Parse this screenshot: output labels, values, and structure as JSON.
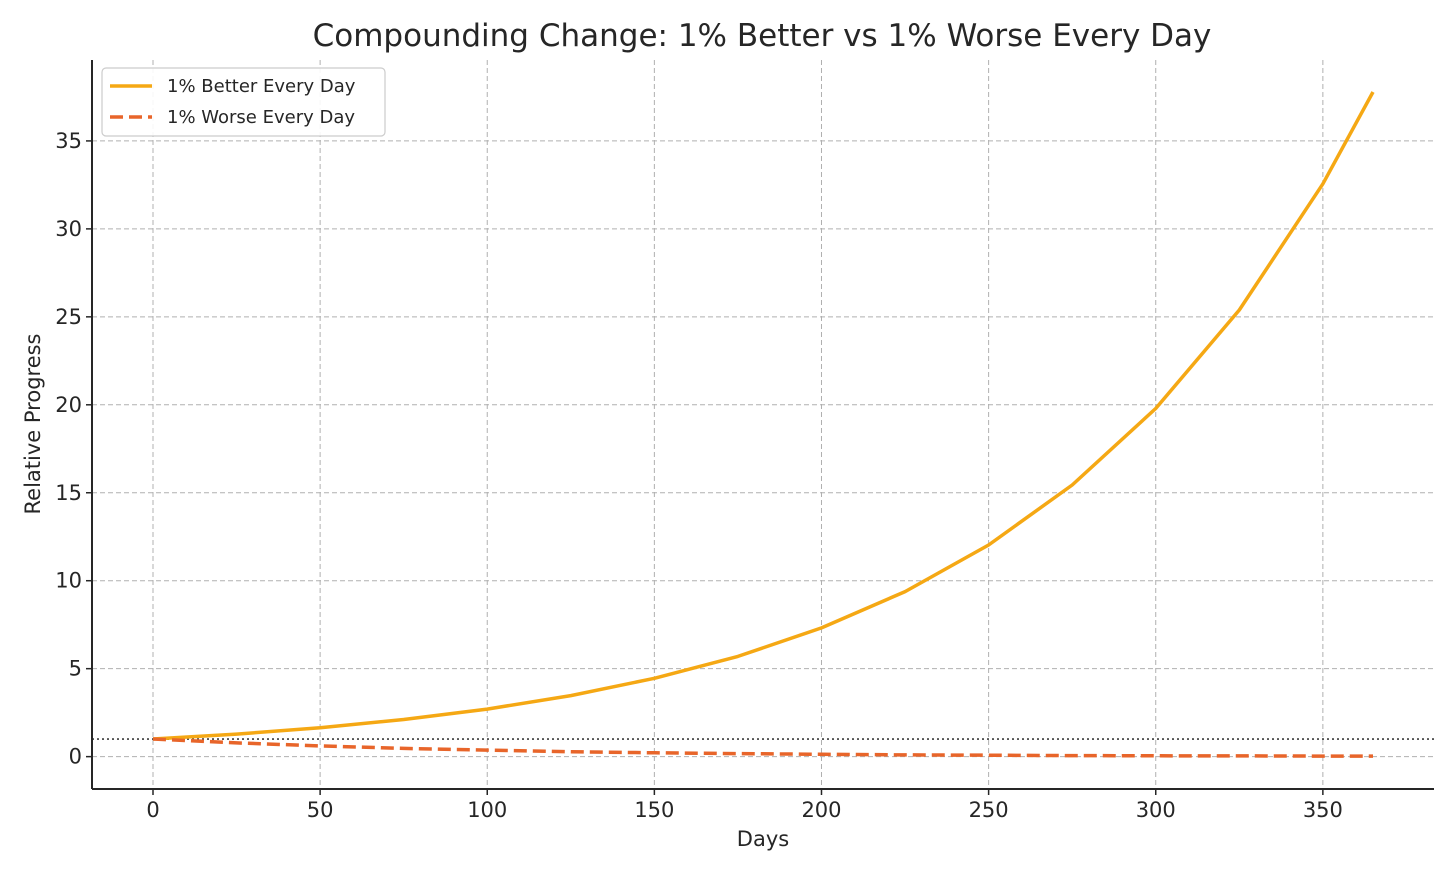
{
  "chart_data": {
    "type": "line",
    "title": "Compounding Change: 1% Better vs 1% Worse Every Day",
    "xlabel": "Days",
    "ylabel": "Relative Progress",
    "xlim": [
      -18.25,
      383.25
    ],
    "ylim": [
      -1.84,
      39.6
    ],
    "xticks": [
      0,
      50,
      100,
      150,
      200,
      250,
      300,
      350
    ],
    "yticks": [
      0,
      5,
      10,
      15,
      20,
      25,
      30,
      35
    ],
    "grid": true,
    "legend_position": "top-left",
    "reference_line": {
      "y": 1,
      "style": "dotted",
      "color": "#555555"
    },
    "series": [
      {
        "name": "1% Better Every Day",
        "style": "solid",
        "color": "#F5A814",
        "x": [
          0,
          25,
          50,
          75,
          100,
          125,
          150,
          175,
          200,
          225,
          250,
          275,
          300,
          325,
          350,
          365
        ],
        "y": [
          1.0,
          1.28,
          1.64,
          2.11,
          2.7,
          3.47,
          4.45,
          5.7,
          7.32,
          9.38,
          12.03,
          15.44,
          19.79,
          25.39,
          32.56,
          37.78
        ]
      },
      {
        "name": "1% Worse Every Day",
        "style": "dashed",
        "color": "#E8652A",
        "x": [
          0,
          25,
          50,
          75,
          100,
          125,
          150,
          175,
          200,
          225,
          250,
          275,
          300,
          325,
          350,
          365
        ],
        "y": [
          1.0,
          0.78,
          0.61,
          0.47,
          0.37,
          0.28,
          0.22,
          0.17,
          0.13,
          0.1,
          0.08,
          0.06,
          0.05,
          0.04,
          0.03,
          0.03
        ]
      }
    ]
  }
}
